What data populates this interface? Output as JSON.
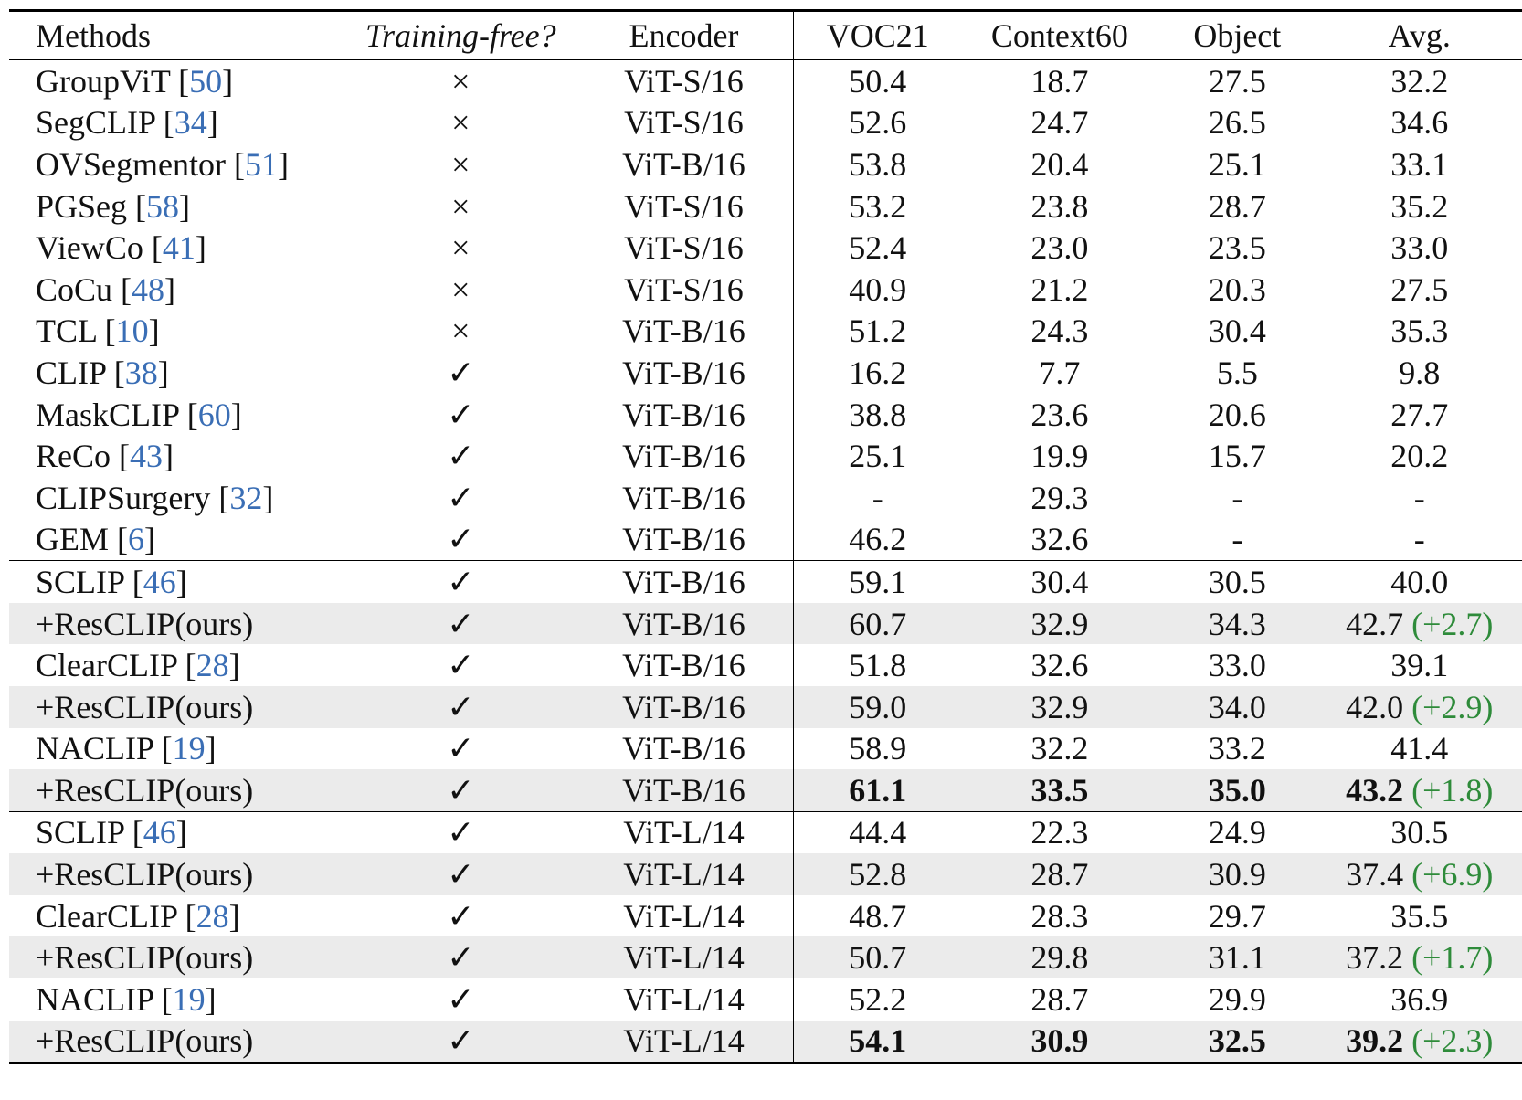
{
  "table": {
    "headers": {
      "methods": "Methods",
      "training_free": "Training-free?",
      "encoder": "Encoder",
      "voc21": "VOC21",
      "context60": "Context60",
      "object": "Object",
      "avg": "Avg."
    },
    "rows": [
      {
        "method": "GroupViT",
        "cite": "50",
        "tf": "×",
        "encoder": "ViT-S/16",
        "voc": "50.4",
        "ctx": "18.7",
        "obj": "27.5",
        "avg": "32.2",
        "gain": ""
      },
      {
        "method": "SegCLIP",
        "cite": "34",
        "tf": "×",
        "encoder": "ViT-S/16",
        "voc": "52.6",
        "ctx": "24.7",
        "obj": "26.5",
        "avg": "34.6",
        "gain": ""
      },
      {
        "method": "OVSegmentor",
        "cite": "51",
        "tf": "×",
        "encoder": "ViT-B/16",
        "voc": "53.8",
        "ctx": "20.4",
        "obj": "25.1",
        "avg": "33.1",
        "gain": ""
      },
      {
        "method": "PGSeg",
        "cite": "58",
        "tf": "×",
        "encoder": "ViT-S/16",
        "voc": "53.2",
        "ctx": "23.8",
        "obj": "28.7",
        "avg": "35.2",
        "gain": ""
      },
      {
        "method": "ViewCo",
        "cite": "41",
        "tf": "×",
        "encoder": "ViT-S/16",
        "voc": "52.4",
        "ctx": "23.0",
        "obj": "23.5",
        "avg": "33.0",
        "gain": ""
      },
      {
        "method": "CoCu",
        "cite": "48",
        "tf": "×",
        "encoder": "ViT-S/16",
        "voc": "40.9",
        "ctx": "21.2",
        "obj": "20.3",
        "avg": "27.5",
        "gain": ""
      },
      {
        "method": "TCL",
        "cite": "10",
        "tf": "×",
        "encoder": "ViT-B/16",
        "voc": "51.2",
        "ctx": "24.3",
        "obj": "30.4",
        "avg": "35.3",
        "gain": ""
      },
      {
        "method": "CLIP",
        "cite": "38",
        "tf": "✓",
        "encoder": "ViT-B/16",
        "voc": "16.2",
        "ctx": "7.7",
        "obj": "5.5",
        "avg": "9.8",
        "gain": ""
      },
      {
        "method": "MaskCLIP",
        "cite": "60",
        "tf": "✓",
        "encoder": "ViT-B/16",
        "voc": "38.8",
        "ctx": "23.6",
        "obj": "20.6",
        "avg": "27.7",
        "gain": ""
      },
      {
        "method": "ReCo",
        "cite": "43",
        "tf": "✓",
        "encoder": "ViT-B/16",
        "voc": "25.1",
        "ctx": "19.9",
        "obj": "15.7",
        "avg": "20.2",
        "gain": ""
      },
      {
        "method": "CLIPSurgery",
        "cite": "32",
        "tf": "✓",
        "encoder": "ViT-B/16",
        "voc": "-",
        "ctx": "29.3",
        "obj": "-",
        "avg": "-",
        "gain": ""
      },
      {
        "method": "GEM",
        "cite": "6",
        "tf": "✓",
        "encoder": "ViT-B/16",
        "voc": "46.2",
        "ctx": "32.6",
        "obj": "-",
        "avg": "-",
        "gain": ""
      },
      {
        "method": "SCLIP",
        "cite": "46",
        "tf": "✓",
        "encoder": "ViT-B/16",
        "voc": "59.1",
        "ctx": "30.4",
        "obj": "30.5",
        "avg": "40.0",
        "gain": ""
      },
      {
        "method": "+ResCLIP(ours)",
        "cite": "",
        "tf": "✓",
        "encoder": "ViT-B/16",
        "voc": "60.7",
        "ctx": "32.9",
        "obj": "34.3",
        "avg": "42.7",
        "gain": "(+2.7)"
      },
      {
        "method": "ClearCLIP",
        "cite": "28",
        "tf": "✓",
        "encoder": "ViT-B/16",
        "voc": "51.8",
        "ctx": "32.6",
        "obj": "33.0",
        "avg": "39.1",
        "gain": ""
      },
      {
        "method": "+ResCLIP(ours)",
        "cite": "",
        "tf": "✓",
        "encoder": "ViT-B/16",
        "voc": "59.0",
        "ctx": "32.9",
        "obj": "34.0",
        "avg": "42.0",
        "gain": "(+2.9)"
      },
      {
        "method": "NACLIP",
        "cite": "19",
        "tf": "✓",
        "encoder": "ViT-B/16",
        "voc": "58.9",
        "ctx": "32.2",
        "obj": "33.2",
        "avg": "41.4",
        "gain": ""
      },
      {
        "method": "+ResCLIP(ours)",
        "cite": "",
        "tf": "✓",
        "encoder": "ViT-B/16",
        "voc": "61.1",
        "ctx": "33.5",
        "obj": "35.0",
        "avg": "43.2",
        "gain": "(+1.8)"
      },
      {
        "method": "SCLIP",
        "cite": "46",
        "tf": "✓",
        "encoder": "ViT-L/14",
        "voc": "44.4",
        "ctx": "22.3",
        "obj": "24.9",
        "avg": "30.5",
        "gain": ""
      },
      {
        "method": "+ResCLIP(ours)",
        "cite": "",
        "tf": "✓",
        "encoder": "ViT-L/14",
        "voc": "52.8",
        "ctx": "28.7",
        "obj": "30.9",
        "avg": "37.4",
        "gain": "(+6.9)"
      },
      {
        "method": "ClearCLIP",
        "cite": "28",
        "tf": "✓",
        "encoder": "ViT-L/14",
        "voc": "48.7",
        "ctx": "28.3",
        "obj": "29.7",
        "avg": "35.5",
        "gain": ""
      },
      {
        "method": "+ResCLIP(ours)",
        "cite": "",
        "tf": "✓",
        "encoder": "ViT-L/14",
        "voc": "50.7",
        "ctx": "29.8",
        "obj": "31.1",
        "avg": "37.2",
        "gain": "(+1.7)"
      },
      {
        "method": "NACLIP",
        "cite": "19",
        "tf": "✓",
        "encoder": "ViT-L/14",
        "voc": "52.2",
        "ctx": "28.7",
        "obj": "29.9",
        "avg": "36.9",
        "gain": ""
      },
      {
        "method": "+ResCLIP(ours)",
        "cite": "",
        "tf": "✓",
        "encoder": "ViT-L/14",
        "voc": "54.1",
        "ctx": "30.9",
        "obj": "32.5",
        "avg": "39.2",
        "gain": "(+2.3)"
      }
    ],
    "shaded_rows": [
      13,
      15,
      17,
      19,
      21,
      23
    ],
    "separator_before_rows": [
      12,
      18
    ],
    "bold_rows": [
      17,
      23
    ],
    "colors": {
      "citation": "#3a6eb5",
      "gain": "#2e8b3a",
      "shade": "#ebebeb"
    }
  }
}
